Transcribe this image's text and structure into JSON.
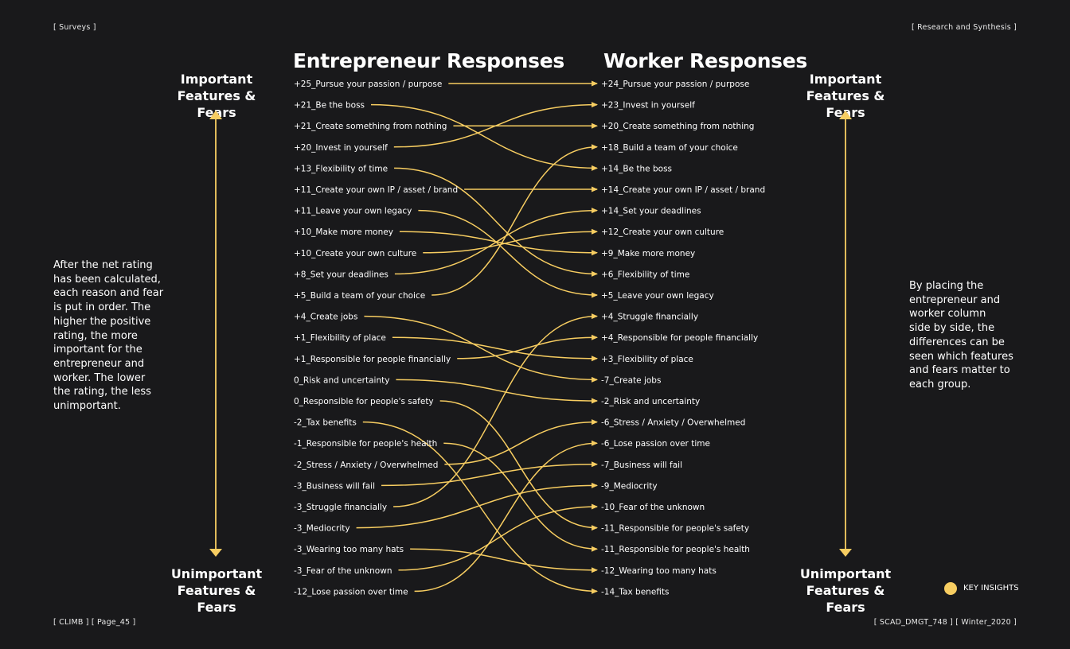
{
  "header": {
    "left": "[ Surveys ]",
    "right": "[ Research and Synthesis ]"
  },
  "footer": {
    "left": "[ CLIMB ] [ Page_45 ]",
    "right": "[ SCAD_DMGT_748 ] [ Winter_2020 ]"
  },
  "columns": {
    "entrepreneur_title": "Entrepreneur Responses",
    "worker_title": "Worker Responses"
  },
  "side_labels": {
    "important_line1": "Important",
    "important_line2": "Features & Fears",
    "unimportant_line1": "Unimportant",
    "unimportant_line2": "Features & Fears"
  },
  "notes": {
    "left": [
      "After the net rating",
      "has been calculated,",
      "each reason and fear",
      "is put in order. The",
      "higher the positive",
      "rating, the more",
      "important for the",
      "entrepreneur and",
      "worker. The lower",
      "the rating, the less",
      "unimportant."
    ],
    "right": [
      "By placing the",
      "entrepreneur and",
      "worker column",
      "side by side, the",
      "differences can be",
      "seen which features",
      "and fears matter to",
      "each group."
    ]
  },
  "legend": {
    "label": "KEY INSIGHTS",
    "color": "#f7cd61"
  },
  "colors": {
    "accent": "#f7cd61",
    "background": "#19191b",
    "text": "#ffffff"
  },
  "entrepreneur_items": [
    "+25_Pursue your passion / purpose",
    "+21_Be the boss",
    "+21_Create something from nothing",
    "+20_Invest in yourself",
    "+13_Flexibility of time",
    "+11_Create your own IP / asset / brand",
    "+11_Leave your own legacy",
    "+10_Make more money",
    "+10_Create your own culture",
    "+8_Set your deadlines",
    "+5_Build a team of your choice",
    "+4_Create jobs",
    "+1_Flexibility of place",
    "+1_Responsible for people financially",
    "0_Risk and uncertainty",
    "0_Responsible for people's safety",
    "-2_Tax benefits",
    "-1_Responsible for people's health",
    "-2_Stress / Anxiety / Overwhelmed",
    "-3_Business will fail",
    "-3_Struggle financially",
    "-3_Mediocrity",
    "-3_Wearing too many hats",
    "-3_Fear of the unknown",
    "-12_Lose passion over time"
  ],
  "worker_items": [
    "+24_Pursue your passion / purpose",
    "+23_Invest in yourself",
    "+20_Create something from nothing",
    "+18_Build a team of your choice",
    "+14_Be the boss",
    "+14_Create your own IP / asset / brand",
    "+14_Set your deadlines",
    "+12_Create your own culture",
    "+9_Make more money",
    "+6_Flexibility of time",
    "+5_Leave your own legacy",
    "+4_Struggle financially",
    "+4_Responsible for people financially",
    "+3_Flexibility of place",
    "-7_Create jobs",
    "-2_Risk and uncertainty",
    "-6_Stress / Anxiety / Overwhelmed",
    "-6_Lose passion over time",
    "-7_Business will fail",
    "-9_Mediocrity",
    "-10_Fear of the unknown",
    "-11_Responsible for people's safety",
    "-11_Responsible for people's health",
    "-12_Wearing too many hats",
    "-14_Tax benefits"
  ],
  "links": [
    [
      0,
      0
    ],
    [
      1,
      4
    ],
    [
      2,
      2
    ],
    [
      3,
      1
    ],
    [
      4,
      9
    ],
    [
      5,
      5
    ],
    [
      6,
      10
    ],
    [
      7,
      8
    ],
    [
      8,
      7
    ],
    [
      9,
      6
    ],
    [
      10,
      3
    ],
    [
      11,
      14
    ],
    [
      12,
      13
    ],
    [
      13,
      12
    ],
    [
      14,
      15
    ],
    [
      15,
      21
    ],
    [
      16,
      24
    ],
    [
      17,
      22
    ],
    [
      18,
      16
    ],
    [
      19,
      18
    ],
    [
      20,
      11
    ],
    [
      21,
      19
    ],
    [
      22,
      23
    ],
    [
      23,
      20
    ],
    [
      24,
      17
    ]
  ]
}
